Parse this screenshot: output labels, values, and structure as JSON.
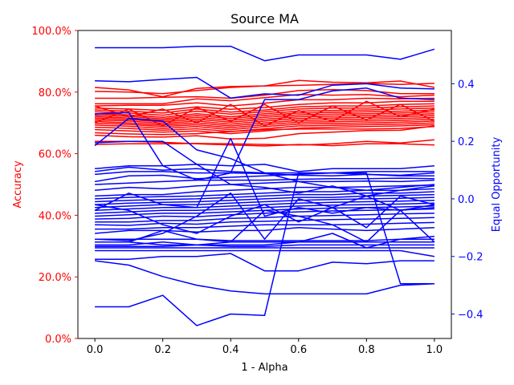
{
  "chart_data": {
    "type": "line",
    "title": "Source MA",
    "xlabel": "1 - Alpha",
    "ylabel_left": "Accuracy",
    "ylabel_right": "Equal Opportunity",
    "x": [
      0.0,
      0.1,
      0.2,
      0.3,
      0.4,
      0.5,
      0.6,
      0.7,
      0.8,
      0.9,
      1.0
    ],
    "xlim": [
      -0.05,
      1.05
    ],
    "ylim_left": [
      0.0,
      1.0
    ],
    "ylim_right": [
      -0.485,
      0.585
    ],
    "x_ticks": [
      0.0,
      0.2,
      0.4,
      0.6,
      0.8,
      1.0
    ],
    "x_tick_labels": [
      "0.0",
      "0.2",
      "0.4",
      "0.6",
      "0.8",
      "1.0"
    ],
    "left_ticks": [
      0.0,
      0.2,
      0.4,
      0.6,
      0.8,
      1.0
    ],
    "left_tick_labels": [
      "0.0%",
      "20.0%",
      "40.0%",
      "60.0%",
      "80.0%",
      "100.0%"
    ],
    "right_ticks": [
      -0.4,
      -0.2,
      0.0,
      0.2,
      0.4
    ],
    "right_tick_labels": [
      "−0.4",
      "−0.2",
      "0.0",
      "0.2",
      "0.4"
    ],
    "left_color": "#ff0000",
    "right_color": "#0000ff",
    "grid": false,
    "legend": "none",
    "accuracy_series": [
      {
        "axis": "left",
        "values": [
          0.815,
          0.807,
          0.785,
          0.812,
          0.818,
          0.82,
          0.838,
          0.832,
          0.83,
          0.836,
          0.815
        ]
      },
      {
        "axis": "left",
        "values": [
          0.802,
          0.8,
          0.795,
          0.805,
          0.815,
          0.82,
          0.822,
          0.825,
          0.828,
          0.825,
          0.828
        ]
      },
      {
        "axis": "left",
        "values": [
          0.78,
          0.78,
          0.783,
          0.785,
          0.78,
          0.79,
          0.805,
          0.808,
          0.805,
          0.795,
          0.795
        ]
      },
      {
        "axis": "left",
        "values": [
          0.762,
          0.762,
          0.762,
          0.778,
          0.772,
          0.782,
          0.792,
          0.79,
          0.792,
          0.785,
          0.79
        ]
      },
      {
        "axis": "left",
        "values": [
          0.755,
          0.757,
          0.757,
          0.765,
          0.755,
          0.764,
          0.775,
          0.775,
          0.78,
          0.778,
          0.78
        ]
      },
      {
        "axis": "left",
        "values": [
          0.748,
          0.745,
          0.74,
          0.752,
          0.744,
          0.75,
          0.76,
          0.765,
          0.765,
          0.77,
          0.77
        ]
      },
      {
        "axis": "left",
        "values": [
          0.742,
          0.738,
          0.732,
          0.745,
          0.735,
          0.742,
          0.752,
          0.755,
          0.755,
          0.76,
          0.762
        ]
      },
      {
        "axis": "left",
        "values": [
          0.736,
          0.732,
          0.725,
          0.738,
          0.728,
          0.736,
          0.745,
          0.748,
          0.748,
          0.752,
          0.755
        ]
      },
      {
        "axis": "left",
        "values": [
          0.73,
          0.726,
          0.718,
          0.73,
          0.72,
          0.73,
          0.738,
          0.74,
          0.742,
          0.745,
          0.748
        ]
      },
      {
        "axis": "left",
        "values": [
          0.725,
          0.721,
          0.713,
          0.724,
          0.714,
          0.724,
          0.732,
          0.734,
          0.736,
          0.738,
          0.742
        ]
      },
      {
        "axis": "left",
        "values": [
          0.72,
          0.716,
          0.708,
          0.718,
          0.708,
          0.718,
          0.726,
          0.728,
          0.73,
          0.732,
          0.736
        ]
      },
      {
        "axis": "left",
        "values": [
          0.715,
          0.711,
          0.703,
          0.712,
          0.702,
          0.712,
          0.72,
          0.722,
          0.724,
          0.726,
          0.73
        ]
      },
      {
        "axis": "left",
        "values": [
          0.71,
          0.706,
          0.698,
          0.706,
          0.696,
          0.706,
          0.714,
          0.716,
          0.718,
          0.72,
          0.724
        ]
      },
      {
        "axis": "left",
        "values": [
          0.705,
          0.7,
          0.693,
          0.7,
          0.69,
          0.7,
          0.708,
          0.71,
          0.712,
          0.714,
          0.718
        ]
      },
      {
        "axis": "left",
        "values": [
          0.699,
          0.695,
          0.688,
          0.694,
          0.684,
          0.694,
          0.702,
          0.704,
          0.706,
          0.708,
          0.712
        ]
      },
      {
        "axis": "left",
        "values": [
          0.693,
          0.689,
          0.682,
          0.688,
          0.678,
          0.688,
          0.696,
          0.698,
          0.7,
          0.702,
          0.706
        ]
      },
      {
        "axis": "left",
        "values": [
          0.686,
          0.682,
          0.676,
          0.681,
          0.672,
          0.681,
          0.69,
          0.692,
          0.694,
          0.696,
          0.7
        ]
      },
      {
        "axis": "left",
        "values": [
          0.678,
          0.674,
          0.67,
          0.674,
          0.665,
          0.674,
          0.683,
          0.686,
          0.688,
          0.69,
          0.694
        ]
      },
      {
        "axis": "left",
        "values": [
          0.668,
          0.664,
          0.662,
          0.665,
          0.672,
          0.678,
          0.68,
          0.68,
          0.68,
          0.682,
          0.688
        ]
      },
      {
        "axis": "left",
        "values": [
          0.66,
          0.655,
          0.654,
          0.658,
          0.648,
          0.65,
          0.665,
          0.67,
          0.675,
          0.676,
          0.69
        ]
      },
      {
        "axis": "left",
        "values": [
          0.64,
          0.64,
          0.637,
          0.632,
          0.628,
          0.625,
          0.63,
          0.626,
          0.632,
          0.632,
          0.628
        ]
      },
      {
        "axis": "left",
        "values": [
          0.63,
          0.632,
          0.632,
          0.633,
          0.632,
          0.63,
          0.628,
          0.632,
          0.64,
          0.635,
          0.645
        ]
      },
      {
        "axis": "left",
        "values": [
          0.755,
          0.72,
          0.745,
          0.7,
          0.76,
          0.69,
          0.74,
          0.705,
          0.77,
          0.72,
          0.745
        ]
      },
      {
        "axis": "left",
        "values": [
          0.7,
          0.745,
          0.69,
          0.75,
          0.705,
          0.76,
          0.7,
          0.755,
          0.71,
          0.76,
          0.705
        ]
      }
    ],
    "eo_series": [
      {
        "axis": "right",
        "values": [
          0.525,
          0.525,
          0.525,
          0.53,
          0.53,
          0.48,
          0.5,
          0.5,
          0.5,
          0.485,
          0.52
        ]
      },
      {
        "axis": "right",
        "values": [
          0.41,
          0.407,
          0.415,
          0.422,
          0.35,
          0.365,
          0.36,
          0.395,
          0.4,
          0.385,
          0.382
        ]
      },
      {
        "axis": "right",
        "values": [
          0.295,
          0.3,
          0.115,
          0.065,
          0.09,
          0.345,
          0.345,
          0.375,
          0.385,
          0.35,
          0.345
        ]
      },
      {
        "axis": "right",
        "values": [
          0.185,
          0.28,
          0.27,
          0.17,
          0.14,
          0.09,
          0.06,
          0.04,
          0.03,
          0.04,
          0.05
        ]
      },
      {
        "axis": "right",
        "values": [
          0.195,
          0.2,
          0.2,
          0.12,
          0.05,
          0.04,
          0.02,
          0.045,
          0.01,
          0.03,
          0.045
        ]
      },
      {
        "axis": "right",
        "values": [
          0.105,
          0.115,
          0.115,
          0.12,
          0.115,
          0.12,
          0.095,
          0.105,
          0.105,
          0.105,
          0.115
        ]
      },
      {
        "axis": "right",
        "values": [
          0.095,
          0.11,
          0.1,
          0.105,
          0.095,
          0.09,
          0.09,
          0.09,
          0.095,
          0.095,
          0.095
        ]
      },
      {
        "axis": "right",
        "values": [
          0.085,
          0.095,
          0.095,
          0.09,
          0.09,
          0.088,
          0.082,
          0.08,
          0.085,
          0.082,
          0.09
        ]
      },
      {
        "axis": "right",
        "values": [
          0.06,
          0.08,
          0.082,
          0.07,
          0.075,
          0.08,
          0.085,
          0.09,
          0.085,
          0.08,
          0.08
        ]
      },
      {
        "axis": "right",
        "values": [
          0.05,
          0.055,
          0.06,
          0.065,
          0.065,
          0.065,
          0.068,
          0.07,
          0.07,
          0.072,
          0.07
        ]
      },
      {
        "axis": "right",
        "values": [
          0.03,
          0.04,
          0.035,
          0.045,
          0.05,
          0.055,
          0.06,
          0.06,
          0.062,
          0.06,
          0.065
        ]
      },
      {
        "axis": "right",
        "values": [
          0.01,
          0.015,
          0.015,
          0.025,
          0.03,
          0.035,
          0.04,
          0.04,
          0.042,
          0.045,
          0.048
        ]
      },
      {
        "axis": "right",
        "values": [
          0.0,
          0.005,
          0.008,
          0.01,
          0.015,
          0.02,
          0.025,
          0.025,
          0.03,
          0.03,
          0.035
        ]
      },
      {
        "axis": "right",
        "values": [
          -0.01,
          -0.005,
          -0.002,
          0.0,
          0.005,
          0.01,
          0.015,
          0.015,
          0.02,
          0.02,
          0.025
        ]
      },
      {
        "axis": "right",
        "values": [
          -0.02,
          -0.015,
          -0.012,
          -0.01,
          -0.005,
          0.0,
          0.005,
          0.005,
          0.01,
          0.012,
          0.015
        ]
      },
      {
        "axis": "right",
        "values": [
          -0.03,
          -0.025,
          -0.02,
          -0.02,
          -0.015,
          -0.01,
          -0.005,
          -0.002,
          0.0,
          0.002,
          0.005
        ]
      },
      {
        "axis": "right",
        "values": [
          -0.04,
          -0.035,
          -0.03,
          -0.03,
          -0.025,
          -0.02,
          -0.015,
          -0.012,
          -0.01,
          -0.008,
          -0.005
        ]
      },
      {
        "axis": "right",
        "values": [
          -0.05,
          -0.045,
          -0.04,
          -0.04,
          -0.035,
          -0.03,
          -0.025,
          -0.022,
          -0.02,
          -0.018,
          -0.015
        ]
      },
      {
        "axis": "right",
        "values": [
          -0.06,
          -0.055,
          -0.05,
          -0.05,
          -0.045,
          -0.04,
          -0.035,
          -0.032,
          -0.03,
          -0.028,
          -0.025
        ]
      },
      {
        "axis": "right",
        "values": [
          -0.07,
          -0.068,
          -0.06,
          -0.062,
          -0.055,
          -0.05,
          -0.045,
          -0.042,
          -0.04,
          -0.038,
          -0.035
        ]
      },
      {
        "axis": "right",
        "values": [
          -0.08,
          -0.08,
          -0.075,
          -0.075,
          -0.068,
          -0.065,
          -0.06,
          -0.058,
          -0.055,
          -0.052,
          -0.05
        ]
      },
      {
        "axis": "right",
        "values": [
          -0.09,
          -0.092,
          -0.085,
          -0.088,
          -0.08,
          -0.078,
          -0.075,
          -0.072,
          -0.07,
          -0.068,
          -0.065
        ]
      },
      {
        "axis": "right",
        "values": [
          -0.105,
          -0.105,
          -0.1,
          -0.1,
          -0.095,
          -0.09,
          -0.09,
          -0.09,
          -0.088,
          -0.085,
          -0.082
        ]
      },
      {
        "axis": "right",
        "values": [
          -0.12,
          -0.11,
          -0.11,
          -0.115,
          -0.11,
          -0.11,
          -0.1,
          -0.105,
          -0.11,
          -0.105,
          -0.1
        ]
      },
      {
        "axis": "right",
        "values": [
          -0.15,
          -0.15,
          -0.11,
          -0.14,
          -0.15,
          -0.04,
          -0.06,
          -0.09,
          -0.15,
          -0.04,
          -0.15
        ]
      },
      {
        "axis": "right",
        "values": [
          -0.14,
          -0.145,
          -0.12,
          -0.06,
          0.02,
          -0.14,
          0.0,
          -0.03,
          -0.1,
          0.01,
          -0.02
        ]
      },
      {
        "axis": "right",
        "values": [
          -0.02,
          -0.04,
          -0.09,
          -0.12,
          -0.06,
          -0.02,
          -0.08,
          -0.03,
          0.01,
          -0.04,
          -0.03
        ]
      },
      {
        "axis": "right",
        "values": [
          -0.04,
          0.02,
          -0.02,
          -0.03,
          0.21,
          -0.06,
          -0.03,
          -0.05,
          -0.03,
          -0.04,
          -0.02
        ]
      },
      {
        "axis": "right",
        "values": [
          -0.15,
          -0.15,
          -0.16,
          -0.16,
          -0.15,
          -0.15,
          -0.15,
          -0.15,
          -0.15,
          -0.15,
          -0.15
        ]
      },
      {
        "axis": "right",
        "values": [
          -0.17,
          -0.17,
          -0.17,
          -0.17,
          -0.17,
          -0.17,
          -0.17,
          -0.17,
          -0.17,
          -0.17,
          -0.17
        ]
      },
      {
        "axis": "right",
        "values": [
          -0.16,
          -0.16,
          -0.15,
          -0.16,
          -0.165,
          -0.165,
          -0.16,
          -0.16,
          -0.16,
          -0.16,
          -0.16
        ]
      },
      {
        "axis": "right",
        "values": [
          -0.14,
          -0.14,
          -0.14,
          -0.14,
          -0.145,
          -0.145,
          -0.145,
          -0.145,
          -0.145,
          -0.14,
          -0.14
        ]
      },
      {
        "axis": "right",
        "values": [
          -0.165,
          -0.165,
          -0.165,
          -0.16,
          -0.16,
          -0.16,
          -0.15,
          -0.12,
          -0.17,
          -0.14,
          -0.13
        ]
      },
      {
        "axis": "right",
        "values": [
          -0.18,
          -0.18,
          -0.18,
          -0.18,
          -0.18,
          -0.18,
          -0.18,
          -0.18,
          -0.18,
          -0.18,
          -0.2
        ]
      },
      {
        "axis": "right",
        "values": [
          -0.21,
          -0.21,
          -0.2,
          -0.2,
          -0.19,
          -0.25,
          -0.25,
          -0.22,
          -0.225,
          -0.215,
          -0.215
        ]
      },
      {
        "axis": "right",
        "values": [
          -0.215,
          -0.23,
          -0.27,
          -0.3,
          -0.32,
          -0.33,
          -0.33,
          -0.33,
          -0.33,
          -0.3,
          -0.295
        ]
      },
      {
        "axis": "right",
        "values": [
          -0.375,
          -0.375,
          -0.335,
          -0.44,
          -0.4,
          -0.405,
          0.09,
          0.09,
          0.09,
          -0.295,
          -0.295
        ]
      }
    ]
  }
}
